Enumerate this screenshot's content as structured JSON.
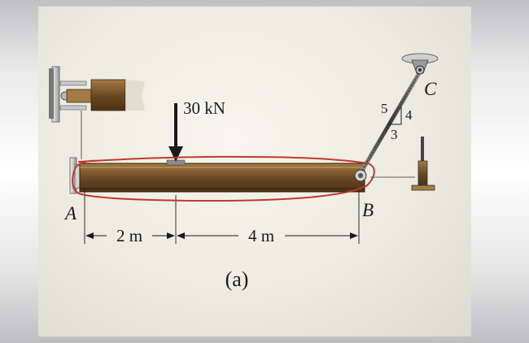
{
  "load": {
    "label": "30 kN"
  },
  "points": {
    "a": "A",
    "b": "B",
    "c": "C"
  },
  "dimensions": {
    "left_span": "2 m",
    "right_span": "4 m"
  },
  "slope": {
    "rise": "4",
    "run": "3",
    "hyp": "5"
  },
  "caption": "(a)",
  "colors": {
    "beam": "#6b4a24",
    "highlight": "#c0392b",
    "cable": "#555555"
  }
}
